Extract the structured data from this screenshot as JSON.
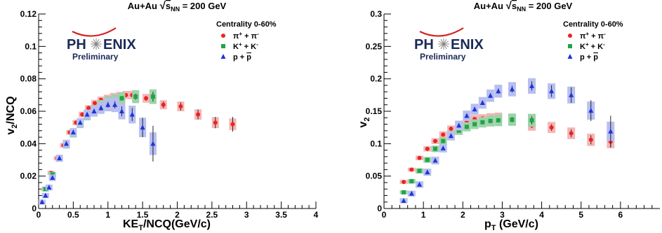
{
  "chart_data": [
    {
      "type": "scatter",
      "title_prefix": "Au+Au",
      "title_sqrt": "√",
      "title_s": "s",
      "title_sub": "NN",
      "title_suffix": " = 200 GeV",
      "ylabel": "v",
      "ylabel_sub": "2",
      "ylabel_suffix": "/NCQ",
      "xlabel": "KE",
      "xlabel_sub": "T",
      "xlabel_suffix": "/NCQ(GeV/c)",
      "xlim": [
        0,
        4
      ],
      "ylim": [
        0,
        0.12
      ],
      "x_ticks": [
        0,
        0.5,
        1,
        1.5,
        2,
        2.5,
        3,
        3.5,
        4
      ],
      "x_tick_labels": [
        "0",
        "0.5",
        "1",
        "1.5",
        "2",
        "2.5",
        "3",
        "3.5",
        "4"
      ],
      "y_ticks": [
        0,
        0.02,
        0.04,
        0.06,
        0.08,
        0.1,
        0.12
      ],
      "y_tick_labels": [
        "0",
        "0.02",
        "0.04",
        "0.06",
        "0.08",
        "0.1",
        "0.12"
      ],
      "grid": false,
      "legend_title": "Centrality 0-60%",
      "legend_position": "top-right",
      "logo_text_left": "PH",
      "logo_text_right": "ENIX",
      "logo_sub": "Preliminary",
      "series": [
        {
          "label": "π",
          "label_sup1": "+",
          "label_mid": " + π",
          "label_sup2": "-",
          "color": "#ee2222",
          "band_color": "#f4b5b5",
          "marker": "circle",
          "x": [
            0.09,
            0.18,
            0.27,
            0.36,
            0.45,
            0.54,
            0.63,
            0.72,
            0.81,
            0.9,
            0.99,
            1.08,
            1.17,
            1.26,
            1.35,
            1.55,
            1.8,
            2.05,
            2.3,
            2.55,
            2.8
          ],
          "y": [
            0.012,
            0.022,
            0.031,
            0.039,
            0.047,
            0.053,
            0.058,
            0.062,
            0.065,
            0.067,
            0.068,
            0.069,
            0.0695,
            0.07,
            0.07,
            0.068,
            0.064,
            0.063,
            0.058,
            0.053,
            0.052
          ],
          "err": [
            0.0003,
            0.0003,
            0.0004,
            0.0004,
            0.0005,
            0.0005,
            0.0005,
            0.0006,
            0.0006,
            0.0007,
            0.0008,
            0.0008,
            0.0009,
            0.001,
            0.001,
            0.0015,
            0.002,
            0.0025,
            0.003,
            0.0035,
            0.0045
          ],
          "sys": [
            0.0012,
            0.0012,
            0.0013,
            0.0014,
            0.0015,
            0.0016,
            0.0017,
            0.0018,
            0.002,
            0.0021,
            0.0022,
            0.0023,
            0.0024,
            0.0025,
            0.0026,
            0.0027,
            0.0028,
            0.003,
            0.0032,
            0.0034,
            0.0036
          ]
        },
        {
          "label": "K",
          "label_sup1": "+",
          "label_mid": " + K",
          "label_sup2": "-",
          "color": "#22a34a",
          "band_color": "#9dd3a8",
          "marker": "square",
          "x": [
            0.1,
            0.2,
            0.3,
            0.4,
            0.5,
            0.6,
            0.7,
            0.8,
            0.9,
            1.0,
            1.1,
            1.2,
            1.4,
            1.65
          ],
          "y": [
            0.012,
            0.021,
            0.031,
            0.039,
            0.046,
            0.052,
            0.057,
            0.061,
            0.064,
            0.066,
            0.067,
            0.068,
            0.069,
            0.069
          ],
          "err": [
            0.0005,
            0.0005,
            0.0006,
            0.0006,
            0.0007,
            0.0008,
            0.0008,
            0.0009,
            0.001,
            0.0011,
            0.0012,
            0.0014,
            0.0018,
            0.003
          ],
          "sys": [
            0.0015,
            0.0016,
            0.0018,
            0.002,
            0.0022,
            0.0024,
            0.0026,
            0.0028,
            0.003,
            0.0032,
            0.0034,
            0.0037,
            0.004,
            0.0045
          ]
        },
        {
          "label": "p + ",
          "label_bar": "p",
          "color": "#1e34d8",
          "band_color": "#b8bff0",
          "marker": "triangle",
          "x": [
            0.05,
            0.1,
            0.15,
            0.2,
            0.3,
            0.4,
            0.5,
            0.6,
            0.7,
            0.8,
            0.9,
            1.0,
            1.1,
            1.2,
            1.35,
            1.5,
            1.65
          ],
          "y": [
            0.004,
            0.008,
            0.013,
            0.019,
            0.031,
            0.04,
            0.047,
            0.053,
            0.058,
            0.06,
            0.062,
            0.064,
            0.064,
            0.06,
            0.058,
            0.05,
            0.04
          ],
          "err": [
            0.0005,
            0.0005,
            0.0006,
            0.0007,
            0.0008,
            0.0009,
            0.001,
            0.0011,
            0.0012,
            0.0014,
            0.0016,
            0.0018,
            0.0022,
            0.003,
            0.004,
            0.006,
            0.011
          ],
          "sys": [
            0.0015,
            0.0016,
            0.0018,
            0.002,
            0.0022,
            0.0024,
            0.0026,
            0.0028,
            0.003,
            0.0033,
            0.0036,
            0.004,
            0.0045,
            0.005,
            0.0055,
            0.006,
            0.007
          ]
        }
      ]
    },
    {
      "type": "scatter",
      "title_prefix": "Au+Au",
      "title_sqrt": "√",
      "title_s": "s",
      "title_sub": "NN",
      "title_suffix": " = 200 GeV",
      "ylabel": "v",
      "ylabel_sub": "2",
      "ylabel_suffix": "",
      "xlabel": "p",
      "xlabel_sub": "T",
      "xlabel_suffix": " (GeV/c)",
      "xlim": [
        0,
        7
      ],
      "ylim": [
        0,
        0.3
      ],
      "x_ticks": [
        0,
        1,
        2,
        3,
        4,
        5,
        6
      ],
      "x_tick_labels": [
        "0",
        "1",
        "2",
        "3",
        "4",
        "5",
        "6"
      ],
      "y_ticks": [
        0,
        0.05,
        0.1,
        0.15,
        0.2,
        0.25,
        0.3
      ],
      "y_tick_labels": [
        "0",
        "0.05",
        "0.1",
        "0.15",
        "0.2",
        "0.25",
        "0.3"
      ],
      "grid": false,
      "legend_title": "Centrality 0-60%",
      "legend_position": "top-right",
      "logo_text_left": "PH",
      "logo_text_right": "ENIX",
      "logo_sub": "Preliminary",
      "series": [
        {
          "label": "π",
          "label_sup1": "+",
          "label_mid": " + π",
          "label_sup2": "-",
          "color": "#ee2222",
          "band_color": "#f4b5b5",
          "marker": "circle",
          "x": [
            0.5,
            0.7,
            0.9,
            1.1,
            1.3,
            1.5,
            1.7,
            1.9,
            2.1,
            2.3,
            2.5,
            2.7,
            2.9,
            3.25,
            3.75,
            4.25,
            4.75,
            5.25,
            5.75
          ],
          "y": [
            0.041,
            0.06,
            0.078,
            0.092,
            0.104,
            0.114,
            0.123,
            0.13,
            0.135,
            0.138,
            0.139,
            0.14,
            0.141,
            0.136,
            0.128,
            0.125,
            0.116,
            0.106,
            0.103
          ],
          "err": [
            0.001,
            0.001,
            0.001,
            0.0012,
            0.0013,
            0.0015,
            0.0016,
            0.0017,
            0.0018,
            0.002,
            0.0022,
            0.0024,
            0.0026,
            0.003,
            0.004,
            0.005,
            0.006,
            0.007,
            0.009
          ],
          "sys": [
            0.003,
            0.003,
            0.0035,
            0.004,
            0.0045,
            0.005,
            0.005,
            0.0055,
            0.006,
            0.006,
            0.0065,
            0.007,
            0.007,
            0.0075,
            0.008,
            0.0085,
            0.009,
            0.0095,
            0.01
          ]
        },
        {
          "label": "K",
          "label_sup1": "+",
          "label_mid": " + K",
          "label_sup2": "-",
          "color": "#22a34a",
          "band_color": "#9dd3a8",
          "marker": "square",
          "x": [
            0.5,
            0.7,
            0.9,
            1.1,
            1.3,
            1.5,
            1.7,
            1.9,
            2.1,
            2.3,
            2.5,
            2.7,
            2.9,
            3.25,
            3.75
          ],
          "y": [
            0.025,
            0.042,
            0.058,
            0.075,
            0.092,
            0.104,
            0.114,
            0.12,
            0.126,
            0.13,
            0.133,
            0.135,
            0.136,
            0.137,
            0.136
          ],
          "err": [
            0.001,
            0.0012,
            0.0013,
            0.0015,
            0.0016,
            0.0018,
            0.002,
            0.0022,
            0.0024,
            0.0026,
            0.0028,
            0.003,
            0.0033,
            0.004,
            0.006
          ],
          "sys": [
            0.003,
            0.0035,
            0.004,
            0.0045,
            0.005,
            0.0055,
            0.006,
            0.0065,
            0.007,
            0.0075,
            0.008,
            0.0085,
            0.009,
            0.0095,
            0.01
          ]
        },
        {
          "label": "p + ",
          "label_bar": "p",
          "color": "#1e34d8",
          "band_color": "#b8bff0",
          "marker": "triangle",
          "x": [
            0.5,
            0.7,
            0.9,
            1.1,
            1.3,
            1.5,
            1.7,
            1.9,
            2.1,
            2.3,
            2.5,
            2.7,
            2.9,
            3.25,
            3.75,
            4.25,
            4.75,
            5.25,
            5.75
          ],
          "y": [
            0.012,
            0.023,
            0.037,
            0.056,
            0.074,
            0.093,
            0.112,
            0.128,
            0.143,
            0.153,
            0.163,
            0.174,
            0.181,
            0.184,
            0.189,
            0.181,
            0.175,
            0.151,
            0.119
          ],
          "err": [
            0.001,
            0.0012,
            0.0014,
            0.0016,
            0.0018,
            0.002,
            0.0022,
            0.0025,
            0.0028,
            0.003,
            0.0033,
            0.0036,
            0.004,
            0.005,
            0.007,
            0.009,
            0.012,
            0.016,
            0.024
          ],
          "sys": [
            0.004,
            0.0045,
            0.005,
            0.0055,
            0.006,
            0.0065,
            0.007,
            0.0075,
            0.008,
            0.0085,
            0.009,
            0.0095,
            0.01,
            0.011,
            0.012,
            0.012,
            0.013,
            0.014,
            0.015
          ]
        }
      ]
    }
  ]
}
